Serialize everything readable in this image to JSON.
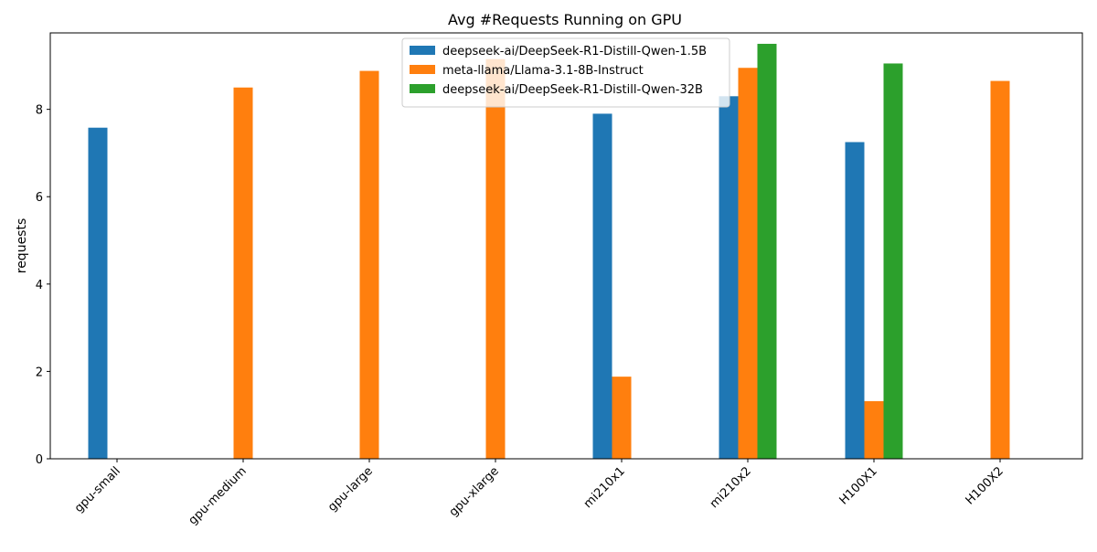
{
  "chart_data": {
    "type": "bar",
    "title": "Avg #Requests Running on GPU",
    "xlabel": "",
    "ylabel": "requests",
    "categories": [
      "gpu-small",
      "gpu-medium",
      "gpu-large",
      "gpu-xlarge",
      "mi210x1",
      "mi210x2",
      "H100X1",
      "H100X2"
    ],
    "series": [
      {
        "name": "deepseek-ai/DeepSeek-R1-Distill-Qwen-1.5B",
        "color": "#1f77b4",
        "values": [
          7.58,
          0,
          0,
          0,
          7.9,
          8.3,
          7.25,
          0
        ]
      },
      {
        "name": "meta-llama/Llama-3.1-8B-Instruct",
        "color": "#ff7f0e",
        "values": [
          0,
          8.5,
          8.88,
          9.15,
          1.88,
          8.95,
          1.32,
          8.65
        ]
      },
      {
        "name": "deepseek-ai/DeepSeek-R1-Distill-Qwen-32B",
        "color": "#2ca02c",
        "values": [
          0,
          0,
          0,
          0,
          0,
          9.5,
          9.05,
          0
        ]
      }
    ],
    "yticks": [
      0,
      2,
      4,
      6,
      8
    ],
    "ylim": [
      0,
      9.75
    ],
    "legend_position": "top-center",
    "grid": false
  }
}
